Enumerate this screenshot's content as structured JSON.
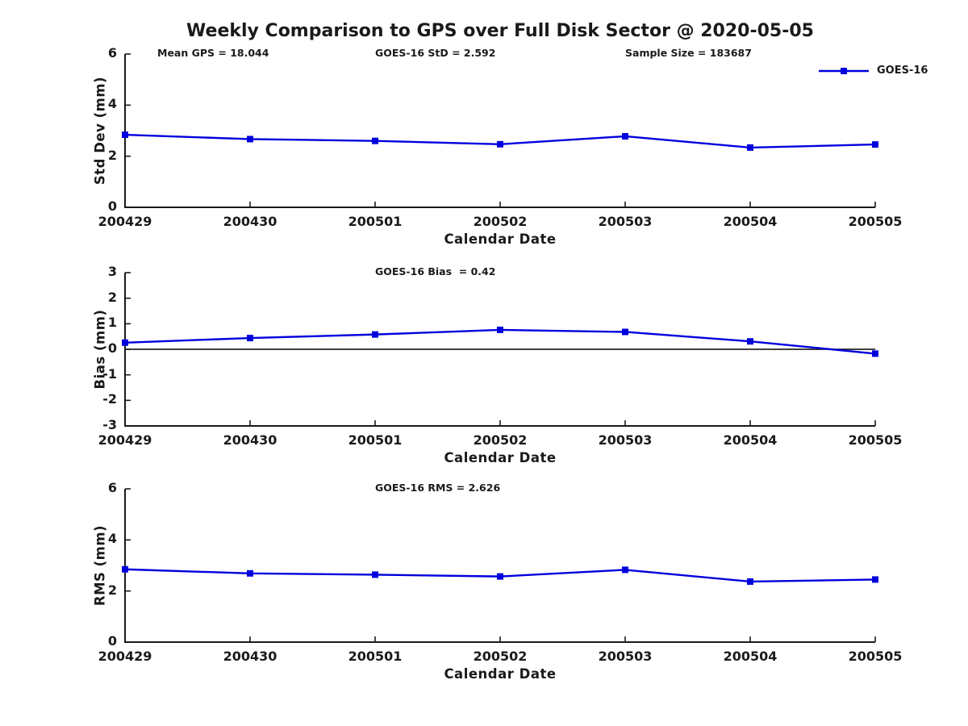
{
  "title": "Weekly Comparison to GPS over Full Disk Sector @ 2020-05-05",
  "legend": {
    "label": "GOES-16",
    "marker": "square"
  },
  "colors": {
    "series_line": "#0000dd",
    "axis": "#1a1a1a",
    "zero_line": "#000000",
    "background": "#ffffff"
  },
  "chart_data": [
    {
      "type": "line",
      "name": "std-dev",
      "annotations": [
        "Mean GPS = 18.044",
        "GOES-16 StD = 2.592",
        "Sample Size = 183687"
      ],
      "x": [
        "200429",
        "200430",
        "200501",
        "200502",
        "200503",
        "200504",
        "200505"
      ],
      "series": [
        {
          "name": "GOES-16",
          "values": [
            2.84,
            2.67,
            2.6,
            2.47,
            2.78,
            2.34,
            2.46
          ]
        }
      ],
      "xlabel": "Calendar Date",
      "ylabel": "Std Dev (mm)",
      "ylim": [
        0,
        6
      ],
      "yticks": [
        0,
        2,
        4,
        6
      ],
      "zero_line": false,
      "grid": false
    },
    {
      "type": "line",
      "name": "bias",
      "annotation": "GOES-16 Bias  = 0.42",
      "x": [
        "200429",
        "200430",
        "200501",
        "200502",
        "200503",
        "200504",
        "200505"
      ],
      "series": [
        {
          "name": "GOES-16",
          "values": [
            0.26,
            0.44,
            0.58,
            0.76,
            0.68,
            0.31,
            -0.17
          ]
        }
      ],
      "xlabel": "Calendar Date",
      "ylabel": "Bias (mm)",
      "ylim": [
        -3,
        3
      ],
      "yticks": [
        3,
        2,
        1,
        0,
        -1,
        -2,
        -3
      ],
      "zero_line": true,
      "grid": false
    },
    {
      "type": "line",
      "name": "rms",
      "annotation": "GOES-16 RMS = 2.626",
      "x": [
        "200429",
        "200430",
        "200501",
        "200502",
        "200503",
        "200504",
        "200505"
      ],
      "series": [
        {
          "name": "GOES-16",
          "values": [
            2.85,
            2.69,
            2.64,
            2.57,
            2.83,
            2.37,
            2.45
          ]
        }
      ],
      "xlabel": "Calendar Date",
      "ylabel": "RMS (mm)",
      "ylim": [
        0,
        6
      ],
      "yticks": [
        0,
        2,
        4,
        6
      ],
      "zero_line": true,
      "grid": false
    }
  ]
}
